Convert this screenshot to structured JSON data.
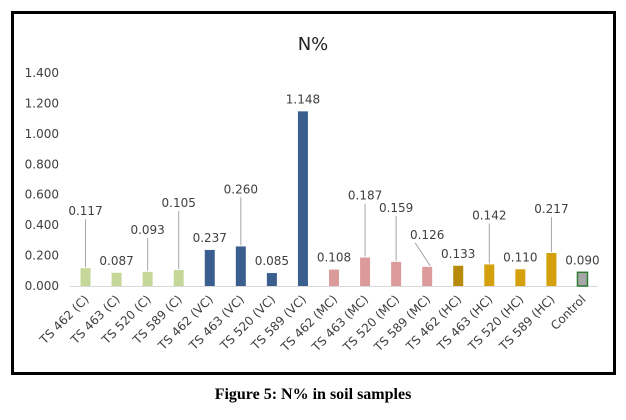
{
  "chart_data": {
    "type": "bar",
    "title": "N%",
    "xlabel": "",
    "ylabel": "",
    "ylim": [
      0,
      1.4
    ],
    "yticks": [
      "0.000",
      "0.200",
      "0.400",
      "0.600",
      "0.800",
      "1.000",
      "1.200",
      "1.400"
    ],
    "ytick_values": [
      0,
      0.2,
      0.4,
      0.6,
      0.8,
      1.0,
      1.2,
      1.4
    ],
    "grid": false,
    "legend": "none",
    "categories": [
      "TS 462 (C)",
      "TS 463 (C)",
      "TS 520 (C)",
      "TS 589 (C)",
      "TS 462 (VC)",
      "TS 463 (VC)",
      "TS 520 (VC)",
      "TS 589 (VC)",
      "TS 462 (MC)",
      "TS 463 (MC)",
      "TS 520 (MC)",
      "TS 589 (MC)",
      "TS 462 (HC)",
      "TS 463 (HC)",
      "TS 520 (HC)",
      "TS 589 (HC)",
      "Control"
    ],
    "values": [
      0.117,
      0.087,
      0.093,
      0.105,
      0.237,
      0.26,
      0.085,
      1.148,
      0.108,
      0.187,
      0.159,
      0.126,
      0.133,
      0.142,
      0.11,
      0.217,
      0.09
    ],
    "value_labels": [
      "0.117",
      "0.087",
      "0.093",
      "0.105",
      "0.237",
      "0.260",
      "0.085",
      "1.148",
      "0.108",
      "0.187",
      "0.159",
      "0.126",
      "0.133",
      "0.142",
      "0.110",
      "0.217",
      "0.090"
    ],
    "bar_colors": [
      "#c5d89a",
      "#c5d89a",
      "#c5d89a",
      "#c5d89a",
      "#3a5f8f",
      "#3a5f8f",
      "#3a5f8f",
      "#3a5f8f",
      "#dc9b9b",
      "#dc9b9b",
      "#dc9b9b",
      "#dc9b9b",
      "#b88a0c",
      "#d4a00c",
      "#d4a00c",
      "#d4a00c",
      "#a6a6a6"
    ],
    "bar_outline_colors": [
      "",
      "",
      "",
      "",
      "",
      "",
      "",
      "",
      "",
      "",
      "",
      "",
      "",
      "",
      "",
      "",
      "#2e7d32"
    ],
    "label_leader_lines": [
      true,
      false,
      true,
      true,
      false,
      true,
      false,
      false,
      false,
      true,
      true,
      true,
      false,
      true,
      false,
      true,
      false
    ],
    "label_offsets": [
      45,
      0,
      30,
      55,
      0,
      45,
      0,
      0,
      0,
      50,
      42,
      20,
      0,
      37,
      0,
      32,
      0
    ]
  },
  "caption": "Figure 5: N% in soil samples"
}
